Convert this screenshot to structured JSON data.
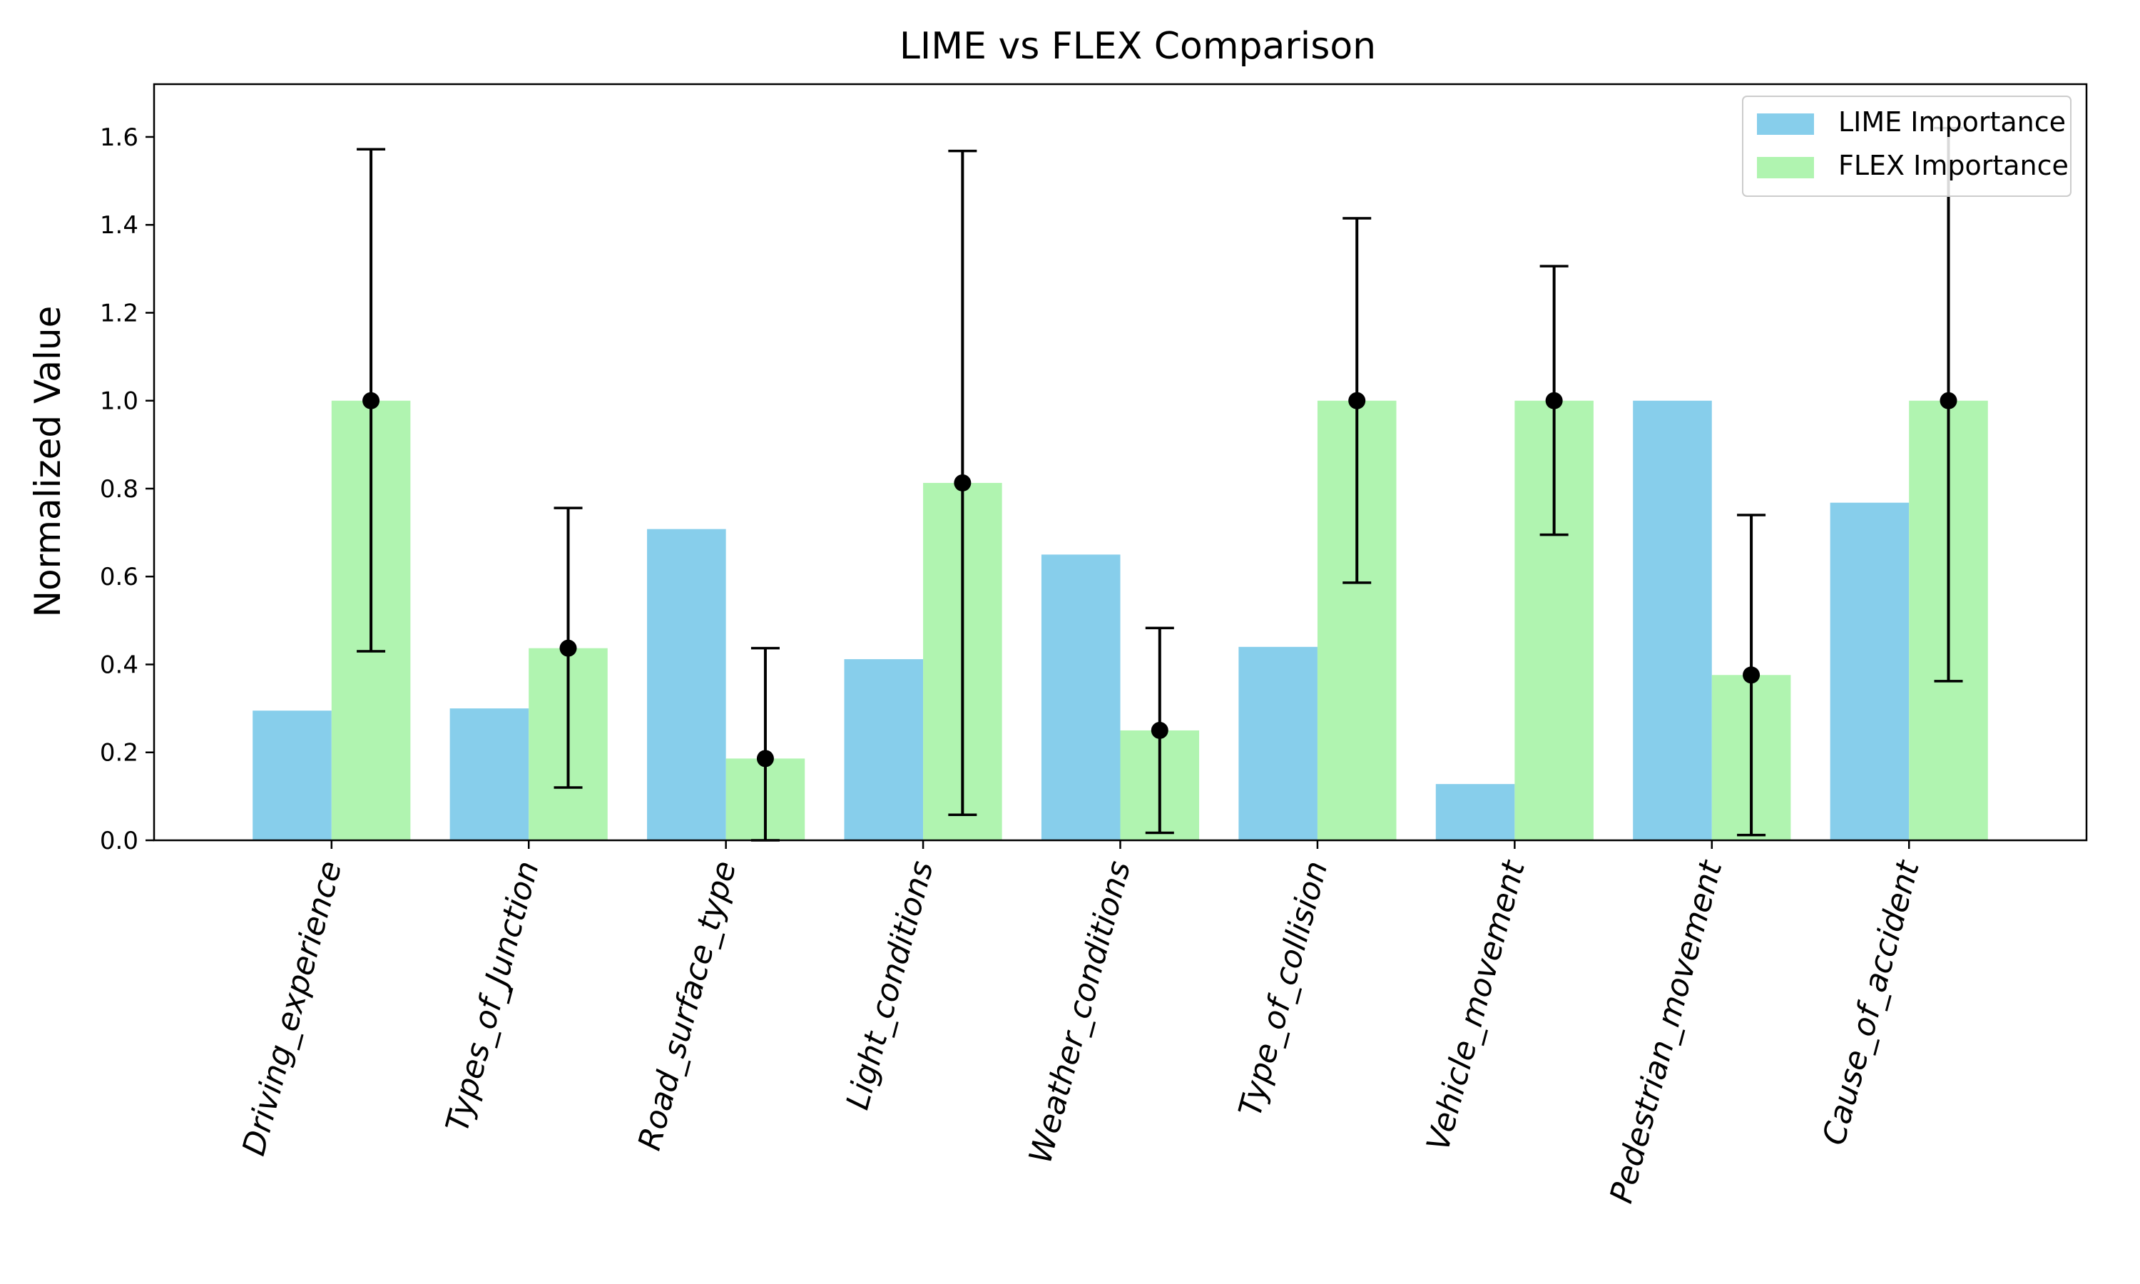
{
  "chart_data": {
    "type": "bar",
    "title": "LIME vs FLEX Comparison",
    "xlabel": "",
    "ylabel": "Normalized Value",
    "ylim": [
      0,
      1.72
    ],
    "yticks": [
      "0.0",
      "0.2",
      "0.4",
      "0.6",
      "0.8",
      "1.0",
      "1.2",
      "1.4",
      "1.6"
    ],
    "grid": false,
    "legend_position": "top-right",
    "categories": [
      "Driving_experience",
      "Types_of_Junction",
      "Road_surface_type",
      "Light_conditions",
      "Weather_conditions",
      "Type_of_collision",
      "Vehicle_movement",
      "Pedestrian_movement",
      "Cause_of_accident"
    ],
    "series": [
      {
        "name": "LIME Importance",
        "color": "#87ceeb",
        "values": [
          0.295,
          0.3,
          0.708,
          0.412,
          0.65,
          0.44,
          0.128,
          1.0,
          0.768
        ]
      },
      {
        "name": "FLEX Importance",
        "color": "#b0f4b0",
        "values": [
          1.0,
          0.437,
          0.186,
          0.813,
          0.25,
          1.0,
          1.0,
          0.376,
          1.0
        ]
      }
    ],
    "error_bars": {
      "series": "FLEX Importance",
      "center": [
        1.0,
        0.437,
        0.186,
        0.813,
        0.25,
        1.0,
        1.0,
        0.376,
        1.0
      ],
      "lower": [
        0.43,
        0.12,
        0.0,
        0.058,
        0.017,
        0.586,
        0.695,
        0.012,
        0.362
      ],
      "upper": [
        1.572,
        0.756,
        0.437,
        1.568,
        0.483,
        1.415,
        1.306,
        0.74,
        1.62
      ],
      "color": "#000000"
    }
  }
}
